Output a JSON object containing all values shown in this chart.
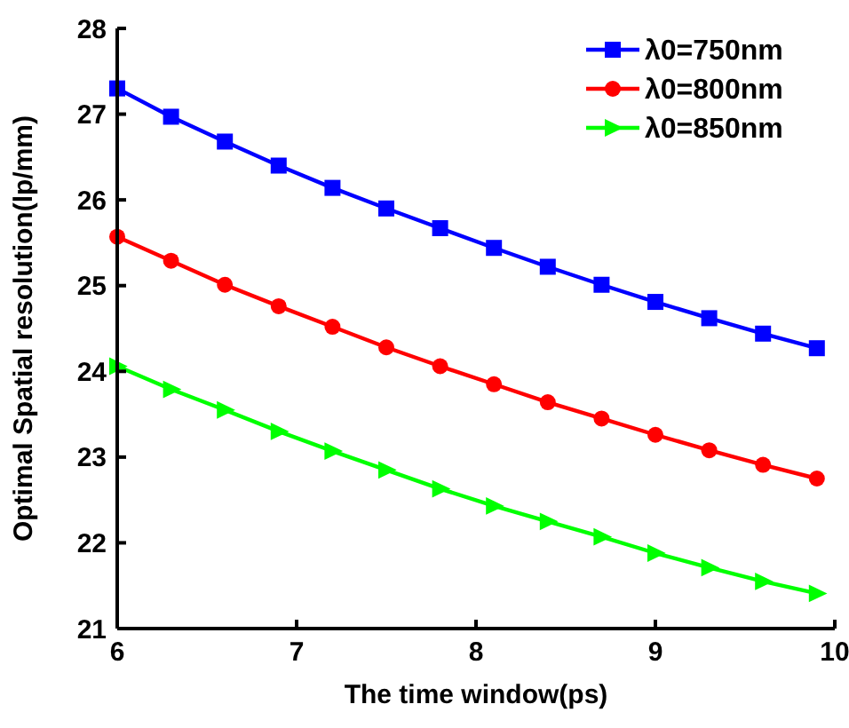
{
  "chart_data": {
    "type": "line",
    "xlabel": "The time window(ps)",
    "ylabel": "Optimal Spatial resolution(lp/mm)",
    "x": [
      6,
      6.3,
      6.6,
      6.9,
      7.2,
      7.5,
      7.8,
      8.1,
      8.4,
      8.7,
      9,
      9.3,
      9.6,
      9.9
    ],
    "xlim": [
      6,
      10
    ],
    "xticks": [
      6,
      7,
      8,
      9,
      10
    ],
    "ylim": [
      21,
      28
    ],
    "yticks": [
      21,
      22,
      23,
      24,
      25,
      26,
      27,
      28
    ],
    "grid": false,
    "legend": "top right",
    "series": [
      {
        "name": "λ0=750nm",
        "color": "#0000ff",
        "marker": "square",
        "values": [
          27.3,
          26.97,
          26.68,
          26.4,
          26.14,
          25.9,
          25.67,
          25.44,
          25.22,
          25.01,
          24.81,
          24.62,
          24.44,
          24.27
        ]
      },
      {
        "name": "λ0=800nm",
        "color": "#ff0000",
        "marker": "circle",
        "values": [
          25.57,
          25.29,
          25.01,
          24.76,
          24.52,
          24.28,
          24.06,
          23.85,
          23.64,
          23.45,
          23.26,
          23.08,
          22.91,
          22.75
        ]
      },
      {
        "name": "λ0=850nm",
        "color": "#00ff00",
        "marker": "triangle",
        "values": [
          24.06,
          23.79,
          23.55,
          23.3,
          23.07,
          22.85,
          22.63,
          22.43,
          22.25,
          22.07,
          21.88,
          21.71,
          21.55,
          21.41
        ]
      }
    ]
  }
}
